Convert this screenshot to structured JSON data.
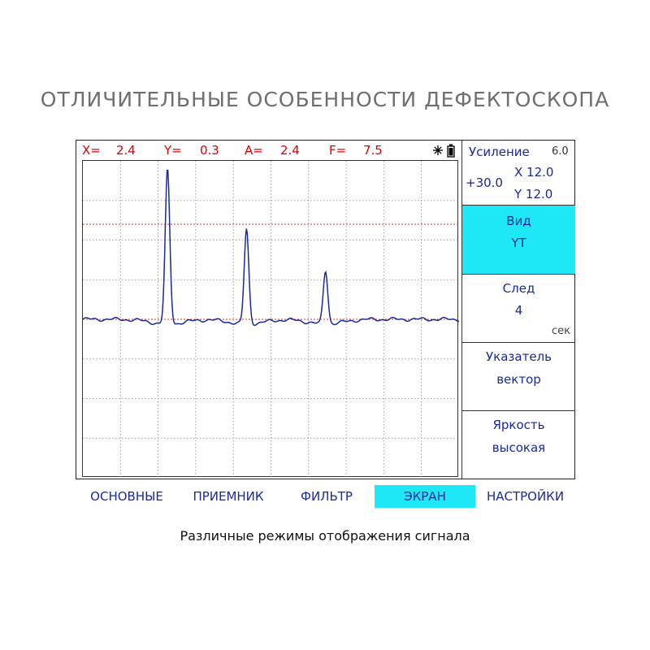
{
  "title": "ОТЛИЧИТЕЛЬНЫЕ ОСОБЕННОСТИ ДЕФЕКТОСКОПА",
  "caption": "Различные режимы отображения сигнала",
  "readout": {
    "x_label": "X=",
    "x_value": "2.4",
    "y_label": "Y=",
    "y_value": "0.3",
    "a_label": "A=",
    "a_value": "2.4",
    "f_label": "F=",
    "f_value": "7.5",
    "icons": [
      "brightness-icon",
      "battery-icon"
    ]
  },
  "colors": {
    "readout": "#e00000",
    "signal": "#1a2a9a",
    "threshold": "#e03030",
    "accent": "#1ee8f5",
    "grid": "#8a8a8a",
    "menu_text": "#1a2a9a"
  },
  "side_panel": {
    "gain": {
      "label": "Усиление",
      "step": "6.0",
      "db": "+30.0",
      "x": "X 12.0",
      "y": "Y 12.0"
    },
    "view": {
      "label": "Вид",
      "value": "YT",
      "active": true
    },
    "trace": {
      "label": "След",
      "value": "4",
      "unit": "сек"
    },
    "pointer": {
      "label": "Указатель",
      "value": "вектор"
    },
    "brightness": {
      "label": "Яркость",
      "value": "высокая"
    }
  },
  "tabs": [
    {
      "label": "ОСНОВНЫЕ",
      "active": false
    },
    {
      "label": "ПРИЕМНИК",
      "active": false
    },
    {
      "label": "ФИЛЬТР",
      "active": false
    },
    {
      "label": "ЭКРАН",
      "active": true
    },
    {
      "label": "НАСТРОЙКИ",
      "active": false
    }
  ],
  "signal_plot": {
    "type": "line",
    "grid_columns": 10,
    "grid_rows": 8,
    "baseline_level": 0,
    "threshold_levels": [
      2.4,
      0
    ],
    "peaks": [
      {
        "t": 2.25,
        "height": 3.9
      },
      {
        "t": 4.35,
        "height": 2.4
      },
      {
        "t": 6.45,
        "height": 1.35
      }
    ]
  }
}
